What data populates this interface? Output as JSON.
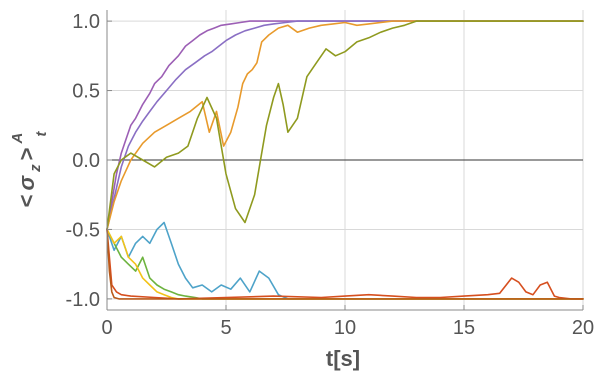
{
  "chart_data": {
    "type": "line",
    "title": "",
    "xlabel": "t[s]",
    "ylabel": {
      "open": "<",
      "sigma": "σ",
      "subscript": "z",
      "close": ">",
      "superscript": "A",
      "subscript2": "t"
    },
    "xlim": [
      0,
      20
    ],
    "ylim": [
      -1.08,
      1.08
    ],
    "xticks": [
      0,
      5,
      10,
      15,
      20
    ],
    "xtick_labels": [
      "0",
      "5",
      "10",
      "15",
      "20"
    ],
    "yticks": [
      -1.0,
      -0.5,
      0.0,
      0.5,
      1.0
    ],
    "ytick_labels": [
      "-1.0",
      "-0.5",
      "0.0",
      "0.5",
      "1.0"
    ],
    "grid": true,
    "zero_line": true,
    "series": [
      {
        "color": "#9c5fb5",
        "x": [
          0,
          0.2,
          0.4,
          0.6,
          0.8,
          1.0,
          1.2,
          1.5,
          1.8,
          2.0,
          2.3,
          2.6,
          3.0,
          3.3,
          3.6,
          3.9,
          4.2,
          4.5,
          4.8,
          5.2,
          5.6,
          6.0,
          7.0,
          8.0,
          20
        ],
        "y": [
          -0.5,
          -0.3,
          -0.1,
          0.05,
          0.15,
          0.25,
          0.3,
          0.4,
          0.48,
          0.55,
          0.6,
          0.68,
          0.75,
          0.82,
          0.86,
          0.9,
          0.93,
          0.95,
          0.97,
          0.98,
          0.99,
          1.0,
          1.0,
          1.0,
          1.0
        ]
      },
      {
        "color": "#8a6fc4",
        "x": [
          0,
          0.2,
          0.4,
          0.6,
          0.9,
          1.2,
          1.5,
          1.8,
          2.1,
          2.5,
          2.9,
          3.3,
          3.7,
          4.1,
          4.4,
          4.7,
          5.0,
          5.4,
          5.8,
          6.2,
          6.6,
          7.0,
          7.5,
          8.0,
          9.0,
          20
        ],
        "y": [
          -0.5,
          -0.35,
          -0.2,
          -0.05,
          0.1,
          0.2,
          0.28,
          0.35,
          0.42,
          0.5,
          0.58,
          0.65,
          0.7,
          0.75,
          0.78,
          0.82,
          0.86,
          0.9,
          0.93,
          0.95,
          0.97,
          0.98,
          0.99,
          1.0,
          1.0,
          1.0
        ]
      },
      {
        "color": "#e89a2c",
        "x": [
          0,
          0.3,
          0.6,
          1.0,
          1.5,
          2.0,
          2.5,
          3.0,
          3.5,
          4.0,
          4.3,
          4.6,
          4.9,
          5.2,
          5.5,
          5.7,
          5.9,
          6.1,
          6.3,
          6.5,
          6.8,
          7.2,
          7.6,
          8.0,
          8.5,
          9.0,
          9.5,
          10.0,
          10.5,
          11.0,
          12.0,
          13.0,
          20
        ],
        "y": [
          -0.5,
          -0.3,
          -0.15,
          0.0,
          0.12,
          0.2,
          0.25,
          0.3,
          0.35,
          0.42,
          0.2,
          0.35,
          0.1,
          0.2,
          0.38,
          0.55,
          0.62,
          0.65,
          0.7,
          0.85,
          0.9,
          0.95,
          0.97,
          0.92,
          0.95,
          0.97,
          0.98,
          0.99,
          0.97,
          0.98,
          1.0,
          1.0,
          1.0
        ]
      },
      {
        "color": "#8f9a1f",
        "x": [
          0,
          0.3,
          0.6,
          1.0,
          1.5,
          2.0,
          2.5,
          3.0,
          3.4,
          3.8,
          4.2,
          4.6,
          5.0,
          5.4,
          5.8,
          6.2,
          6.5,
          6.7,
          7.0,
          7.2,
          7.4,
          7.6,
          8.0,
          8.4,
          8.8,
          9.2,
          9.6,
          10.0,
          10.5,
          11.0,
          11.5,
          12.0,
          12.5,
          13.0,
          14.0,
          20
        ],
        "y": [
          -0.5,
          -0.1,
          0.0,
          0.05,
          0.0,
          -0.05,
          0.02,
          0.05,
          0.1,
          0.3,
          0.45,
          0.3,
          -0.1,
          -0.35,
          -0.45,
          -0.25,
          0.05,
          0.25,
          0.45,
          0.55,
          0.4,
          0.2,
          0.3,
          0.6,
          0.7,
          0.8,
          0.75,
          0.78,
          0.85,
          0.88,
          0.92,
          0.95,
          0.97,
          1.0,
          1.0,
          1.0
        ]
      },
      {
        "color": "#4ea3c9",
        "x": [
          0,
          0.3,
          0.6,
          0.9,
          1.2,
          1.5,
          1.8,
          2.1,
          2.4,
          2.7,
          3.0,
          3.3,
          3.6,
          4.0,
          4.4,
          4.8,
          5.2,
          5.6,
          6.0,
          6.4,
          6.8,
          7.2,
          7.6,
          8.0,
          8.5,
          9.0,
          20
        ],
        "y": [
          -0.5,
          -0.65,
          -0.55,
          -0.7,
          -0.6,
          -0.55,
          -0.6,
          -0.5,
          -0.45,
          -0.6,
          -0.75,
          -0.85,
          -0.92,
          -0.9,
          -0.95,
          -0.9,
          -0.93,
          -0.85,
          -0.95,
          -0.8,
          -0.85,
          -0.97,
          -1.0,
          -1.0,
          -1.0,
          -1.0,
          -1.0
        ]
      },
      {
        "color": "#6db33f",
        "x": [
          0,
          0.3,
          0.6,
          0.9,
          1.2,
          1.5,
          1.8,
          2.1,
          2.4,
          2.7,
          3.0,
          3.3,
          3.7,
          4.0,
          20
        ],
        "y": [
          -0.5,
          -0.6,
          -0.7,
          -0.75,
          -0.8,
          -0.7,
          -0.85,
          -0.9,
          -0.93,
          -0.95,
          -0.97,
          -0.98,
          -0.99,
          -1.0,
          -1.0
        ]
      },
      {
        "color": "#f2c319",
        "x": [
          0,
          0.3,
          0.6,
          0.9,
          1.2,
          1.5,
          1.8,
          2.1,
          2.4,
          2.7,
          3.0,
          3.5,
          4.0,
          20
        ],
        "y": [
          -0.5,
          -0.6,
          -0.55,
          -0.7,
          -0.75,
          -0.85,
          -0.9,
          -0.95,
          -0.97,
          -0.99,
          -1.0,
          -1.0,
          -1.0,
          -1.0
        ]
      },
      {
        "color": "#d64f1f",
        "x": [
          0,
          0.2,
          0.4,
          0.6,
          1.0,
          2.0,
          3.0,
          5.0,
          7.0,
          9.0,
          10.0,
          11.0,
          12.0,
          13.0,
          14.0,
          15.0,
          16.0,
          16.5,
          17.0,
          17.3,
          17.6,
          17.9,
          18.2,
          18.5,
          18.8,
          19.0,
          19.5,
          20.0
        ],
        "y": [
          -0.5,
          -0.9,
          -0.95,
          -0.97,
          -0.98,
          -0.99,
          -1.0,
          -0.99,
          -0.98,
          -0.99,
          -0.98,
          -0.97,
          -0.98,
          -0.99,
          -0.99,
          -0.98,
          -0.97,
          -0.96,
          -0.85,
          -0.88,
          -0.95,
          -0.97,
          -0.9,
          -0.88,
          -0.98,
          -0.99,
          -1.0,
          -1.0
        ]
      },
      {
        "color": "#b85a1a",
        "x": [
          0,
          0.1,
          0.2,
          0.3,
          0.5,
          1.0,
          20
        ],
        "y": [
          -0.5,
          -0.8,
          -0.95,
          -0.99,
          -1.0,
          -1.0,
          -1.0
        ]
      }
    ]
  }
}
